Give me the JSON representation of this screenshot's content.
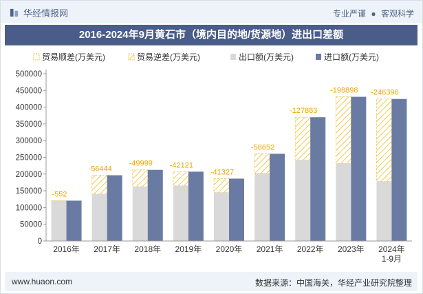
{
  "header": {
    "site_name": "华经情报网",
    "tagline_left": "专业严谨",
    "tagline_right": "客观科学"
  },
  "title": "2016-2024年9月黄石市（境内目的地/货源地）进出口差额",
  "footer": {
    "url": "www.huaon.com",
    "source": "数据来源：中国海关，华经产业研究院整理"
  },
  "colors": {
    "export": "#d9d9d9",
    "import": "#6a7ba3",
    "deficit_stripe": "#f2c94c",
    "label": "#f0a500",
    "title_bg": "#4a5d8a"
  },
  "chart_data": {
    "type": "bar",
    "categories": [
      "2016年",
      "2017年",
      "2018年",
      "2019年",
      "2020年",
      "2021年",
      "2022年",
      "2023年",
      "2024年\n1-9月"
    ],
    "series": [
      {
        "name": "贸易顺差(万美元)",
        "values": [
          0,
          0,
          0,
          0,
          0,
          0,
          0,
          0,
          0
        ]
      },
      {
        "name": "贸易逆差(万美元)",
        "values": [
          552,
          56444,
          49999,
          42121,
          41327,
          58652,
          127883,
          198898,
          246396
        ]
      },
      {
        "name": "出口额(万美元)",
        "values": [
          120000,
          140000,
          162500,
          165000,
          145000,
          202000,
          242000,
          232000,
          178000
        ]
      },
      {
        "name": "进口额(万美元)",
        "values": [
          120552,
          196444,
          212499,
          207121,
          186327,
          260652,
          369883,
          430898,
          424396
        ]
      }
    ],
    "data_labels": [
      "-552",
      "-56444",
      "-49999",
      "-42121",
      "-41327",
      "-58652",
      "-127883",
      "-198898",
      "-246396"
    ],
    "yticks": [
      "0",
      "50000",
      "100000",
      "150000",
      "200000",
      "250000",
      "300000",
      "350000",
      "400000",
      "450000",
      "500000"
    ],
    "ylim": [
      0,
      500000
    ],
    "grid": false,
    "legend_position": "top"
  }
}
